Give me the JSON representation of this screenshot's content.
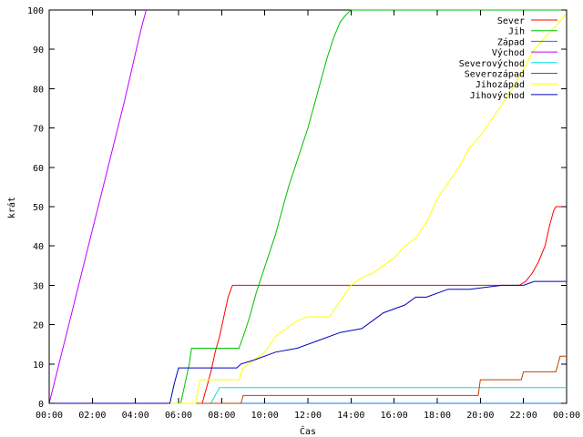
{
  "chart_data": {
    "type": "line",
    "xlabel": "Čas",
    "ylabel": "krát",
    "xlim": [
      0,
      24
    ],
    "ylim": [
      0,
      100
    ],
    "grid": false,
    "legend_position": "top-right",
    "x_ticks": [
      0,
      2,
      4,
      6,
      8,
      10,
      12,
      14,
      16,
      18,
      20,
      22,
      24
    ],
    "x_tick_labels": [
      "00:00",
      "02:00",
      "04:00",
      "06:00",
      "08:00",
      "10:00",
      "12:00",
      "14:00",
      "16:00",
      "18:00",
      "20:00",
      "22:00",
      "00:00"
    ],
    "y_ticks": [
      0,
      10,
      20,
      30,
      40,
      50,
      60,
      70,
      80,
      90,
      100
    ],
    "y_tick_labels": [
      "0",
      "10",
      "20",
      "30",
      "40",
      "50",
      "60",
      "70",
      "80",
      "90",
      "100"
    ],
    "series": [
      {
        "name": "Sever",
        "color": "#ff0000",
        "points": [
          [
            0,
            0
          ],
          [
            7.1,
            0
          ],
          [
            7.3,
            4
          ],
          [
            7.5,
            8
          ],
          [
            7.7,
            13
          ],
          [
            7.9,
            17
          ],
          [
            8.1,
            22
          ],
          [
            8.3,
            27
          ],
          [
            8.5,
            30
          ],
          [
            21.8,
            30
          ],
          [
            22.1,
            31
          ],
          [
            22.4,
            33
          ],
          [
            22.7,
            36
          ],
          [
            23.0,
            40
          ],
          [
            23.2,
            45
          ],
          [
            23.4,
            49
          ],
          [
            23.5,
            50
          ],
          [
            24,
            50
          ]
        ]
      },
      {
        "name": "Jih",
        "color": "#00c000",
        "points": [
          [
            0,
            0
          ],
          [
            6.1,
            0
          ],
          [
            6.3,
            5
          ],
          [
            6.5,
            10
          ],
          [
            6.6,
            14
          ],
          [
            8.8,
            14
          ],
          [
            9.0,
            17
          ],
          [
            9.3,
            22
          ],
          [
            9.6,
            28
          ],
          [
            9.9,
            33
          ],
          [
            10.2,
            38
          ],
          [
            10.5,
            43
          ],
          [
            10.8,
            49
          ],
          [
            11.1,
            55
          ],
          [
            11.4,
            60
          ],
          [
            11.7,
            65
          ],
          [
            12.0,
            70
          ],
          [
            12.3,
            76
          ],
          [
            12.6,
            82
          ],
          [
            12.9,
            88
          ],
          [
            13.2,
            93
          ],
          [
            13.5,
            97
          ],
          [
            13.8,
            99
          ],
          [
            14.0,
            100
          ],
          [
            24,
            100
          ]
        ]
      },
      {
        "name": "Západ",
        "color": "#0080ff",
        "points": [
          [
            0,
            0
          ],
          [
            24,
            0
          ]
        ]
      },
      {
        "name": "Východ",
        "color": "#c000ff",
        "points": [
          [
            0,
            0
          ],
          [
            0.5,
            11
          ],
          [
            1,
            22
          ],
          [
            1.5,
            33
          ],
          [
            2,
            44
          ],
          [
            2.5,
            55
          ],
          [
            3,
            66
          ],
          [
            3.5,
            77
          ],
          [
            4,
            89
          ],
          [
            4.3,
            96
          ],
          [
            4.5,
            100
          ]
        ]
      },
      {
        "name": "Severovýchod",
        "color": "#00e0e0",
        "points": [
          [
            0,
            0
          ],
          [
            7.5,
            0
          ],
          [
            7.7,
            2
          ],
          [
            7.9,
            4
          ],
          [
            24,
            4
          ]
        ]
      },
      {
        "name": "Severozápad",
        "color": "#c04000",
        "points": [
          [
            0,
            0
          ],
          [
            8.9,
            0
          ],
          [
            9.0,
            2
          ],
          [
            19.9,
            2
          ],
          [
            20.0,
            6
          ],
          [
            21.9,
            6
          ],
          [
            22.0,
            8
          ],
          [
            23.5,
            8
          ],
          [
            23.7,
            12
          ],
          [
            24,
            12
          ]
        ]
      },
      {
        "name": "Jihozápad",
        "color": "#ffff00",
        "points": [
          [
            0,
            0
          ],
          [
            6.8,
            0
          ],
          [
            7.0,
            6
          ],
          [
            8.8,
            6
          ],
          [
            9.0,
            9
          ],
          [
            9.5,
            11
          ],
          [
            10.0,
            13
          ],
          [
            10.5,
            17
          ],
          [
            11.0,
            19
          ],
          [
            11.5,
            21
          ],
          [
            12.0,
            22
          ],
          [
            13.0,
            22
          ],
          [
            13.5,
            26
          ],
          [
            14.0,
            30
          ],
          [
            14.5,
            32
          ],
          [
            15.0,
            33
          ],
          [
            16.0,
            37
          ],
          [
            16.5,
            40
          ],
          [
            17.0,
            42
          ],
          [
            17.5,
            46
          ],
          [
            18.0,
            52
          ],
          [
            18.5,
            56
          ],
          [
            19.0,
            60
          ],
          [
            19.5,
            65
          ],
          [
            20.0,
            68
          ],
          [
            20.5,
            72
          ],
          [
            21.0,
            76
          ],
          [
            21.5,
            80
          ],
          [
            22.0,
            85
          ],
          [
            22.5,
            90
          ],
          [
            23.0,
            93
          ],
          [
            23.5,
            96
          ],
          [
            24,
            99
          ]
        ]
      },
      {
        "name": "Jihovýchod",
        "color": "#0000c0",
        "points": [
          [
            0,
            0
          ],
          [
            5.6,
            0
          ],
          [
            5.8,
            5
          ],
          [
            6.0,
            9
          ],
          [
            8.7,
            9
          ],
          [
            8.9,
            10
          ],
          [
            9.5,
            11
          ],
          [
            10.5,
            13
          ],
          [
            11.5,
            14
          ],
          [
            12.5,
            16
          ],
          [
            13.5,
            18
          ],
          [
            14.5,
            19
          ],
          [
            15.0,
            21
          ],
          [
            15.5,
            23
          ],
          [
            16.5,
            25
          ],
          [
            17.0,
            27
          ],
          [
            17.5,
            27
          ],
          [
            18.5,
            29
          ],
          [
            19.5,
            29
          ],
          [
            21.0,
            30
          ],
          [
            22.0,
            30
          ],
          [
            22.5,
            31
          ],
          [
            24,
            31
          ]
        ]
      }
    ]
  }
}
